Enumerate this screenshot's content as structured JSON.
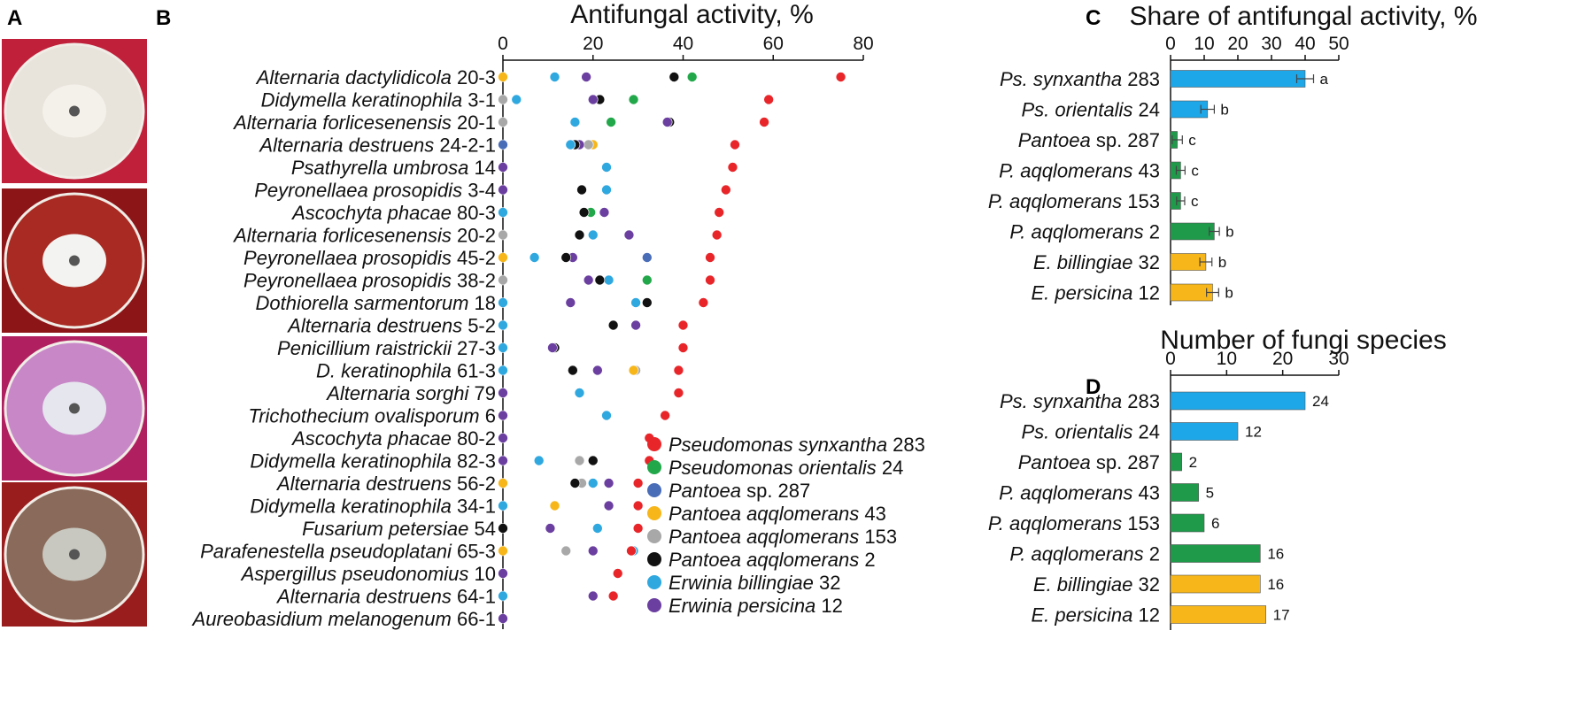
{
  "panels": {
    "a": "A",
    "b": "B",
    "c": "C",
    "d": "D"
  },
  "photos": [
    {
      "name": "petri-dish-photo-1",
      "bg": "#c0203a",
      "agar": "#e8e4dc",
      "colony": "#f4f1ea"
    },
    {
      "name": "petri-dish-photo-2",
      "bg": "#8c1518",
      "agar": "#a82a22",
      "colony": "#f3f3f1"
    },
    {
      "name": "petri-dish-photo-3",
      "bg": "#b02060",
      "agar": "#c888c8",
      "colony": "#e6e6ee"
    },
    {
      "name": "petri-dish-photo-4",
      "bg": "#9a1d1d",
      "agar": "#8a6a5a",
      "colony": "#c8c8c0"
    }
  ],
  "chart_data": [
    {
      "id": "B",
      "type": "scatter",
      "title": "Antifungal activity, %",
      "xlim": [
        0,
        80
      ],
      "xticks": [
        0,
        20,
        40,
        60,
        80
      ],
      "series_colors": {
        "Ps283": "#e8262a",
        "Ps24": "#22a84a",
        "Pan287": "#4a6db8",
        "Pa43": "#f7b619",
        "Pa153": "#a8a8a8",
        "Pa2": "#111111",
        "Eb32": "#2fa8e0",
        "Ep12": "#6b3fa0"
      },
      "legend": [
        {
          "key": "Ps283",
          "italic": "Pseudomonas synxantha",
          "plain": " 283"
        },
        {
          "key": "Ps24",
          "italic": "Pseudomonas orientalis",
          "plain": " 24"
        },
        {
          "key": "Pan287",
          "italic": "Pantoea",
          "plain": " sp. 287"
        },
        {
          "key": "Pa43",
          "italic": "Pantoea aqqlomerans",
          "plain": " 43"
        },
        {
          "key": "Pa153",
          "italic": "Pantoea aqqlomerans",
          "plain": " 153"
        },
        {
          "key": "Pa2",
          "italic": "Pantoea aqqlomerans",
          "plain": " 2"
        },
        {
          "key": "Eb32",
          "italic": "Erwinia billingiae",
          "plain": " 32"
        },
        {
          "key": "Ep12",
          "italic": "Erwinia persicina",
          "plain": " 12"
        }
      ],
      "categories": [
        {
          "italic": "Alternaria dactylidicola",
          "plain": " 20-3",
          "points": [
            [
              "Ps283",
              75
            ],
            [
              "Ps24",
              42
            ],
            [
              "Pa2",
              38
            ],
            [
              "Ep12",
              18.5
            ],
            [
              "Eb32",
              11.5
            ],
            [
              "Pa43",
              0
            ]
          ]
        },
        {
          "italic": "Didymella keratinophila",
          "plain": " 3-1",
          "points": [
            [
              "Ps283",
              59
            ],
            [
              "Ps24",
              29
            ],
            [
              "Pa2",
              21.5
            ],
            [
              "Ep12",
              20
            ],
            [
              "Eb32",
              3
            ],
            [
              "Pa153",
              0
            ]
          ]
        },
        {
          "italic": "Alternaria forlicesenensis",
          "plain": " 20-1",
          "points": [
            [
              "Ps283",
              58
            ],
            [
              "Pa2",
              37
            ],
            [
              "Ep12",
              36.5
            ],
            [
              "Ps24",
              24
            ],
            [
              "Eb32",
              16
            ],
            [
              "Pa153",
              0
            ]
          ]
        },
        {
          "italic": "Alternaria destruens",
          "plain": " 24-2-1",
          "points": [
            [
              "Ps283",
              51.5
            ],
            [
              "Pa43",
              20
            ],
            [
              "Pa153",
              19
            ],
            [
              "Ep12",
              17
            ],
            [
              "Pa2",
              16
            ],
            [
              "Eb32",
              15
            ],
            [
              "Pan287",
              0
            ]
          ]
        },
        {
          "italic": "Psathyrella umbrosa",
          "plain": " 14",
          "points": [
            [
              "Ps283",
              51
            ],
            [
              "Eb32",
              23
            ],
            [
              "Ep12",
              0
            ]
          ]
        },
        {
          "italic": "Peyronellaea prosopidis",
          "plain": " 3-4",
          "points": [
            [
              "Ps283",
              49.5
            ],
            [
              "Eb32",
              23
            ],
            [
              "Pa2",
              17.5
            ],
            [
              "Ep12",
              0
            ]
          ]
        },
        {
          "italic": "Ascochyta phacae",
          "plain": " 80-3",
          "points": [
            [
              "Ps283",
              48
            ],
            [
              "Ep12",
              22.5
            ],
            [
              "Ps24",
              19.5
            ],
            [
              "Pa2",
              18
            ],
            [
              "Eb32",
              0
            ]
          ]
        },
        {
          "italic": "Alternaria  forlicesenensis",
          "plain": " 20-2",
          "points": [
            [
              "Ps283",
              47.5
            ],
            [
              "Ep12",
              28
            ],
            [
              "Eb32",
              20
            ],
            [
              "Pa2",
              17
            ],
            [
              "Pa153",
              0
            ]
          ]
        },
        {
          "italic": "Peyronellaea prosopidis",
          "plain": " 45-2",
          "points": [
            [
              "Ps283",
              46
            ],
            [
              "Pan287",
              32
            ],
            [
              "Ep12",
              15.5
            ],
            [
              "Pa2",
              14
            ],
            [
              "Eb32",
              7
            ],
            [
              "Pa43",
              0
            ]
          ]
        },
        {
          "italic": "Peyronellaea prosopidis",
          "plain": " 38-2",
          "points": [
            [
              "Ps283",
              46
            ],
            [
              "Ps24",
              32
            ],
            [
              "Eb32",
              23.5
            ],
            [
              "Pa2",
              21.5
            ],
            [
              "Ep12",
              19
            ],
            [
              "Pa153",
              0
            ]
          ]
        },
        {
          "italic": "Dothiorella sarmentorum",
          "plain": " 18",
          "points": [
            [
              "Ps283",
              44.5
            ],
            [
              "Pa2",
              32
            ],
            [
              "Eb32",
              29.5
            ],
            [
              "Ep12",
              15
            ],
            [
              "Eb32",
              0
            ]
          ]
        },
        {
          "italic": "Alternaria destruens",
          "plain": " 5-2",
          "points": [
            [
              "Ps283",
              40
            ],
            [
              "Ep12",
              29.5
            ],
            [
              "Pa2",
              24.5
            ],
            [
              "Eb32",
              0
            ]
          ]
        },
        {
          "italic": "Penicillium raistrickii",
          "plain": " 27-3",
          "points": [
            [
              "Ps283",
              40
            ],
            [
              "Pa2",
              11.5
            ],
            [
              "Ep12",
              11
            ],
            [
              "Eb32",
              0
            ]
          ]
        },
        {
          "italic": "D. keratinophila",
          "plain": " 61-3",
          "points": [
            [
              "Ps283",
              39
            ],
            [
              "Pa153",
              29.5
            ],
            [
              "Pa43",
              29
            ],
            [
              "Ep12",
              21
            ],
            [
              "Pa2",
              15.5
            ],
            [
              "Eb32",
              0
            ]
          ]
        },
        {
          "italic": "Alternaria sorghi",
          "plain": " 79",
          "points": [
            [
              "Ps283",
              39
            ],
            [
              "Eb32",
              17
            ],
            [
              "Ep12",
              0
            ]
          ]
        },
        {
          "italic": "Trichothecium ovalisporum",
          "plain": " 6",
          "points": [
            [
              "Ps283",
              36
            ],
            [
              "Eb32",
              23
            ],
            [
              "Ep12",
              0
            ]
          ]
        },
        {
          "italic": "Ascochyta phacae",
          "plain": " 80-2",
          "points": [
            [
              "Ps283",
              32.5
            ],
            [
              "Ep12",
              0
            ]
          ]
        },
        {
          "italic": "Didymella keratinophila",
          "plain": " 82-3",
          "points": [
            [
              "Ps283",
              32.5
            ],
            [
              "Pa2",
              20
            ],
            [
              "Pa153",
              17
            ],
            [
              "Eb32",
              8
            ],
            [
              "Ep12",
              0
            ]
          ]
        },
        {
          "italic": "Alternaria  destruens",
          "plain": " 56-2",
          "points": [
            [
              "Ps283",
              30
            ],
            [
              "Ep12",
              23.5
            ],
            [
              "Eb32",
              20
            ],
            [
              "Pa153",
              17.5
            ],
            [
              "Pa2",
              16
            ],
            [
              "Pa43",
              0
            ]
          ]
        },
        {
          "italic": "Didymella  keratinophila",
          "plain": " 34-1",
          "points": [
            [
              "Ps283",
              30
            ],
            [
              "Ep12",
              23.5
            ],
            [
              "Pa43",
              11.5
            ],
            [
              "Eb32",
              0
            ]
          ]
        },
        {
          "italic": "Fusarium petersiae",
          "plain": " 54",
          "points": [
            [
              "Ps283",
              30
            ],
            [
              "Eb32",
              21
            ],
            [
              "Ep12",
              10.5
            ],
            [
              "Pa2",
              0
            ]
          ]
        },
        {
          "italic": "Parafenestella pseudoplatani",
          "plain": " 65-3",
          "points": [
            [
              "Eb32",
              29
            ],
            [
              "Ps283",
              28.5
            ],
            [
              "Ep12",
              20
            ],
            [
              "Pa153",
              14
            ],
            [
              "Pa43",
              0
            ]
          ]
        },
        {
          "italic": "Aspergillus pseudonomius",
          "plain": " 10",
          "points": [
            [
              "Ps283",
              25.5
            ],
            [
              "Ep12",
              0
            ]
          ]
        },
        {
          "italic": "Alternaria destruens",
          "plain": " 64-1",
          "points": [
            [
              "Ps283",
              24.5
            ],
            [
              "Ep12",
              20
            ],
            [
              "Eb32",
              0
            ]
          ]
        },
        {
          "italic": "Aureobasidium melanogenum",
          "plain": " 66-1",
          "points": [
            [
              "Ep12",
              0
            ]
          ]
        }
      ]
    },
    {
      "id": "C",
      "type": "bar",
      "orientation": "horizontal",
      "title": "Share of antifungal activity, %",
      "xlim": [
        0,
        50
      ],
      "xticks": [
        0,
        10,
        20,
        30,
        40,
        50
      ],
      "categories": [
        {
          "italic": "Ps. synxantha",
          "plain": " 283",
          "value": 40,
          "err": 2.5,
          "group": "a",
          "color": "#1ea7e8"
        },
        {
          "italic": "Ps. orientalis",
          "plain": " 24",
          "value": 11,
          "err": 2,
          "group": "b",
          "color": "#1ea7e8"
        },
        {
          "italic": "Pantoea",
          "plain": " sp. 287",
          "value": 2,
          "err": 1.5,
          "group": "c",
          "color": "#1e9a4a"
        },
        {
          "italic": "P. aqqlomerans",
          "plain": " 43",
          "value": 3,
          "err": 1.3,
          "group": "c",
          "color": "#1e9a4a"
        },
        {
          "italic": "P. aqqlomerans",
          "plain": " 153",
          "value": 3,
          "err": 1.2,
          "group": "c",
          "color": "#1e9a4a"
        },
        {
          "italic": "P. aqqlomerans",
          "plain": " 2",
          "value": 13,
          "err": 1.5,
          "group": "b",
          "color": "#1e9a4a"
        },
        {
          "italic": "E. billingiae",
          "plain": " 32",
          "value": 10.5,
          "err": 1.8,
          "group": "b",
          "color": "#f7b619"
        },
        {
          "italic": "E. persicina",
          "plain": " 12",
          "value": 12.5,
          "err": 1.8,
          "group": "b",
          "color": "#f7b619"
        }
      ]
    },
    {
      "id": "D",
      "type": "bar",
      "orientation": "horizontal",
      "title": "Number of fungi species",
      "xlim": [
        0,
        30
      ],
      "xticks": [
        0,
        10,
        20,
        30
      ],
      "categories": [
        {
          "italic": "Ps. synxantha",
          "plain": " 283",
          "value": 24,
          "label": "24",
          "color": "#1ea7e8"
        },
        {
          "italic": "Ps. orientalis",
          "plain": " 24",
          "value": 12,
          "label": "12",
          "color": "#1ea7e8"
        },
        {
          "italic": "Pantoea",
          "plain": " sp. 287",
          "value": 2,
          "label": "2",
          "color": "#1e9a4a"
        },
        {
          "italic": "P. aqqlomerans",
          "plain": " 43",
          "value": 5,
          "label": "5",
          "color": "#1e9a4a"
        },
        {
          "italic": "P. aqqlomerans",
          "plain": " 153",
          "value": 6,
          "label": "6",
          "color": "#1e9a4a"
        },
        {
          "italic": "P. aqqlomerans",
          "plain": " 2",
          "value": 16,
          "label": "16",
          "color": "#1e9a4a"
        },
        {
          "italic": "E. billingiae",
          "plain": " 32",
          "value": 16,
          "label": "16",
          "color": "#f7b619"
        },
        {
          "italic": "E. persicina",
          "plain": " 12",
          "value": 17,
          "label": "17",
          "color": "#f7b619"
        }
      ]
    }
  ]
}
